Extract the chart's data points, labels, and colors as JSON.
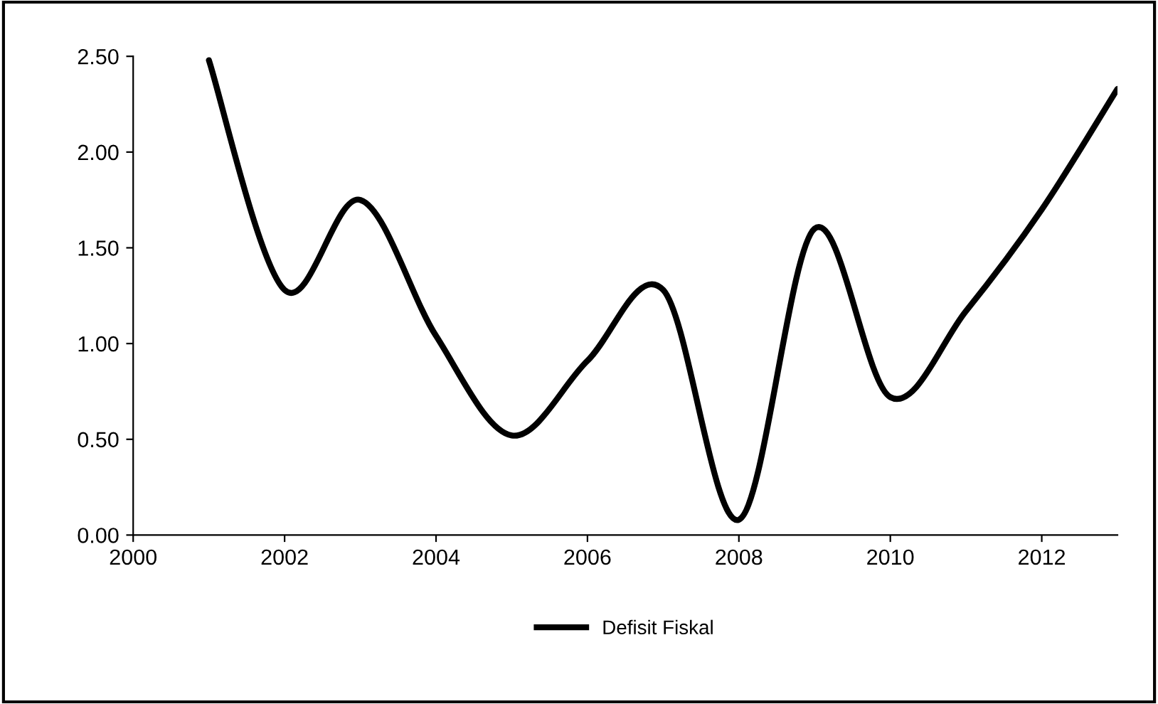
{
  "chart_data": {
    "type": "line",
    "x": [
      2001,
      2002,
      2003,
      2004,
      2005,
      2006,
      2007,
      2008,
      2009,
      2010,
      2011,
      2012,
      2013
    ],
    "series": [
      {
        "name": "Defisit Fiskal",
        "color": "#000000",
        "values": [
          2.48,
          1.28,
          1.75,
          1.04,
          0.52,
          0.91,
          1.28,
          0.08,
          1.6,
          0.72,
          1.17,
          1.7,
          2.33
        ]
      }
    ],
    "xlim": [
      2000,
      2013
    ],
    "xticks": [
      2000,
      2002,
      2004,
      2006,
      2008,
      2010,
      2012
    ],
    "ylim": [
      0,
      2.5
    ],
    "yticks": [
      {
        "value": 0,
        "label": "0.00"
      },
      {
        "value": 0.5,
        "label": "0.50"
      },
      {
        "value": 1.0,
        "label": "1.00"
      },
      {
        "value": 1.5,
        "label": "1.50"
      },
      {
        "value": 2.0,
        "label": "2.00"
      },
      {
        "value": 2.5,
        "label": "2.50"
      }
    ],
    "grid": false,
    "legend": "bottom",
    "marker": "none",
    "line_style": "solid"
  }
}
